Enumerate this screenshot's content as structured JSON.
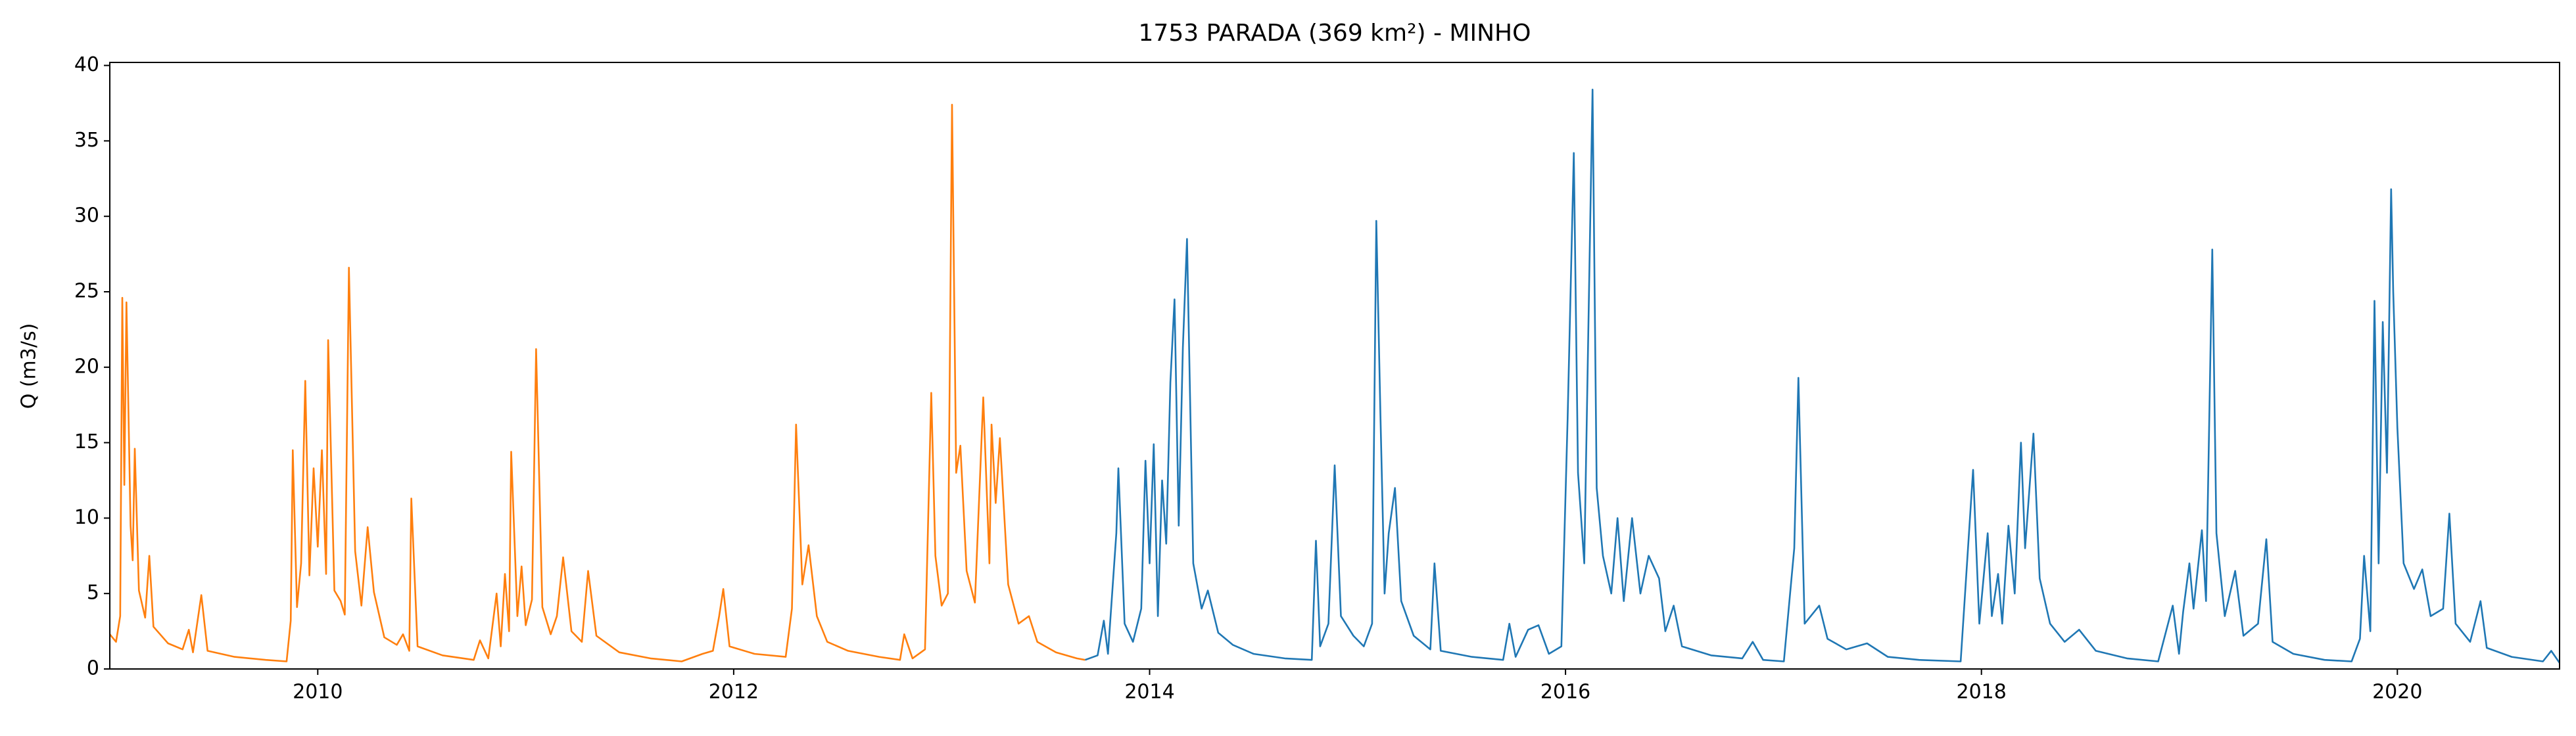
{
  "chart_data": {
    "type": "line",
    "title": "1753 PARADA (369 km²) - MINHO",
    "y_label": "Q (m3/s)",
    "xlim": [
      2009.0,
      2020.78
    ],
    "xticks": [
      2010,
      2012,
      2014,
      2016,
      2018,
      2020
    ],
    "ylim": [
      0,
      40.2
    ],
    "yticks": [
      0,
      5,
      10,
      15,
      20,
      25,
      30,
      35,
      40
    ],
    "grid": false,
    "series": [
      {
        "color": "#ff7f0e",
        "x": [
          2009.0,
          2009.03,
          2009.05,
          2009.06,
          2009.07,
          2009.08,
          2009.1,
          2009.11,
          2009.12,
          2009.14,
          2009.17,
          2009.19,
          2009.21,
          2009.28,
          2009.35,
          2009.38,
          2009.4,
          2009.44,
          2009.47,
          2009.6,
          2009.75,
          2009.85,
          2009.87,
          2009.88,
          2009.9,
          2009.92,
          2009.94,
          2009.96,
          2009.98,
          2010.0,
          2010.02,
          2010.04,
          2010.05,
          2010.08,
          2010.11,
          2010.13,
          2010.15,
          2010.18,
          2010.21,
          2010.24,
          2010.27,
          2010.32,
          2010.38,
          2010.41,
          2010.44,
          2010.45,
          2010.48,
          2010.6,
          2010.75,
          2010.78,
          2010.82,
          2010.86,
          2010.88,
          2010.9,
          2010.92,
          2010.93,
          2010.96,
          2010.98,
          2011.0,
          2011.03,
          2011.05,
          2011.08,
          2011.12,
          2011.15,
          2011.18,
          2011.22,
          2011.27,
          2011.3,
          2011.34,
          2011.45,
          2011.6,
          2011.75,
          2011.85,
          2011.9,
          2011.93,
          2011.95,
          2011.98,
          2012.1,
          2012.25,
          2012.28,
          2012.3,
          2012.33,
          2012.36,
          2012.4,
          2012.45,
          2012.55,
          2012.7,
          2012.8,
          2012.82,
          2012.86,
          2012.92,
          2012.95,
          2012.97,
          2013.0,
          2013.03,
          2013.05,
          2013.07,
          2013.09,
          2013.12,
          2013.16,
          2013.2,
          2013.23,
          2013.24,
          2013.26,
          2013.28,
          2013.32,
          2013.37,
          2013.42,
          2013.46,
          2013.55,
          2013.65,
          2013.69
        ],
        "values": [
          2.3,
          1.8,
          3.5,
          24.6,
          12.2,
          24.3,
          9.5,
          7.2,
          14.6,
          5.2,
          3.4,
          7.5,
          2.8,
          1.7,
          1.3,
          2.6,
          1.1,
          4.9,
          1.2,
          0.8,
          0.6,
          0.5,
          3.2,
          14.5,
          4.1,
          7,
          19.1,
          6.2,
          13.3,
          8.1,
          14.5,
          6.3,
          21.8,
          5.2,
          4.5,
          3.6,
          26.6,
          7.8,
          4.2,
          9.4,
          5.1,
          2.1,
          1.6,
          2.3,
          1.2,
          11.3,
          1.5,
          0.9,
          0.6,
          1.9,
          0.7,
          5,
          1.5,
          6.3,
          2.5,
          14.4,
          3.5,
          6.8,
          2.9,
          4.6,
          21.2,
          4.1,
          2.3,
          3.5,
          7.4,
          2.5,
          1.8,
          6.5,
          2.2,
          1.1,
          0.7,
          0.5,
          1,
          1.2,
          3.5,
          5.3,
          1.5,
          1,
          0.8,
          4,
          16.2,
          5.6,
          8.2,
          3.5,
          1.8,
          1.2,
          0.8,
          0.6,
          2.3,
          0.7,
          1.3,
          18.3,
          7.5,
          4.2,
          5,
          37.4,
          13,
          14.8,
          6.5,
          4.4,
          18,
          7,
          16.2,
          11,
          15.3,
          5.6,
          3,
          3.5,
          1.8,
          1.1,
          0.7,
          0.6
        ]
      },
      {
        "color": "#1f77b4",
        "x": [
          2013.69,
          2013.75,
          2013.78,
          2013.8,
          2013.84,
          2013.85,
          2013.88,
          2013.92,
          2013.96,
          2013.98,
          2014.0,
          2014.02,
          2014.04,
          2014.06,
          2014.08,
          2014.1,
          2014.12,
          2014.14,
          2014.16,
          2014.18,
          2014.21,
          2014.25,
          2014.28,
          2014.33,
          2014.4,
          2014.5,
          2014.65,
          2014.78,
          2014.8,
          2014.82,
          2014.86,
          2014.89,
          2014.92,
          2014.98,
          2015.03,
          2015.07,
          2015.09,
          2015.11,
          2015.13,
          2015.15,
          2015.18,
          2015.21,
          2015.27,
          2015.35,
          2015.37,
          2015.4,
          2015.55,
          2015.7,
          2015.73,
          2015.76,
          2015.82,
          2015.87,
          2015.92,
          2015.98,
          2016.01,
          2016.04,
          2016.06,
          2016.09,
          2016.13,
          2016.15,
          2016.18,
          2016.22,
          2016.25,
          2016.28,
          2016.32,
          2016.36,
          2016.4,
          2016.45,
          2016.48,
          2016.52,
          2016.56,
          2016.7,
          2016.85,
          2016.9,
          2016.95,
          2017.05,
          2017.1,
          2017.12,
          2017.15,
          2017.22,
          2017.26,
          2017.35,
          2017.45,
          2017.55,
          2017.7,
          2017.9,
          2017.96,
          2017.99,
          2018.03,
          2018.05,
          2018.08,
          2018.1,
          2018.13,
          2018.16,
          2018.19,
          2018.21,
          2018.25,
          2018.28,
          2018.33,
          2018.4,
          2018.47,
          2018.55,
          2018.7,
          2018.85,
          2018.92,
          2018.95,
          2018.97,
          2019.0,
          2019.02,
          2019.06,
          2019.08,
          2019.11,
          2019.13,
          2019.17,
          2019.22,
          2019.26,
          2019.33,
          2019.37,
          2019.4,
          2019.5,
          2019.65,
          2019.78,
          2019.82,
          2019.84,
          2019.87,
          2019.89,
          2019.91,
          2019.93,
          2019.95,
          2019.97,
          2019.98,
          2020.0,
          2020.03,
          2020.08,
          2020.12,
          2020.16,
          2020.22,
          2020.25,
          2020.28,
          2020.35,
          2020.4,
          2020.43,
          2020.55,
          2020.7,
          2020.74,
          2020.78
        ],
        "values": [
          0.6,
          0.9,
          3.2,
          1,
          9,
          13.3,
          3,
          1.8,
          4,
          13.8,
          7,
          14.9,
          3.5,
          12.5,
          8.3,
          19,
          24.5,
          9.5,
          21.3,
          28.5,
          7,
          4,
          5.2,
          2.4,
          1.6,
          1,
          0.7,
          0.6,
          8.5,
          1.5,
          3,
          13.5,
          3.5,
          2.2,
          1.5,
          3,
          29.7,
          16.8,
          5,
          9,
          12,
          4.5,
          2.2,
          1.3,
          7,
          1.2,
          0.8,
          0.6,
          3,
          0.8,
          2.6,
          2.9,
          1,
          1.5,
          16.6,
          34.2,
          13,
          7,
          38.4,
          12,
          7.5,
          5,
          10,
          4.5,
          10,
          5,
          7.5,
          6,
          2.5,
          4.2,
          1.5,
          0.9,
          0.7,
          1.8,
          0.6,
          0.5,
          8,
          19.3,
          3,
          4.2,
          2,
          1.3,
          1.7,
          0.8,
          0.6,
          0.5,
          13.2,
          3,
          9,
          3.5,
          6.3,
          3,
          9.5,
          5,
          15,
          8,
          15.6,
          6,
          3,
          1.8,
          2.6,
          1.2,
          0.7,
          0.5,
          4.2,
          1,
          3.8,
          7,
          4,
          9.2,
          4.5,
          27.8,
          9,
          3.5,
          6.5,
          2.2,
          3,
          8.6,
          1.8,
          1,
          0.6,
          0.5,
          2,
          7.5,
          2.5,
          24.4,
          7,
          23,
          13,
          31.8,
          25,
          16,
          7,
          5.3,
          6.6,
          3.5,
          4,
          10.3,
          3,
          1.8,
          4.5,
          1.4,
          0.8,
          0.5,
          1.2,
          0.4
        ]
      }
    ]
  }
}
